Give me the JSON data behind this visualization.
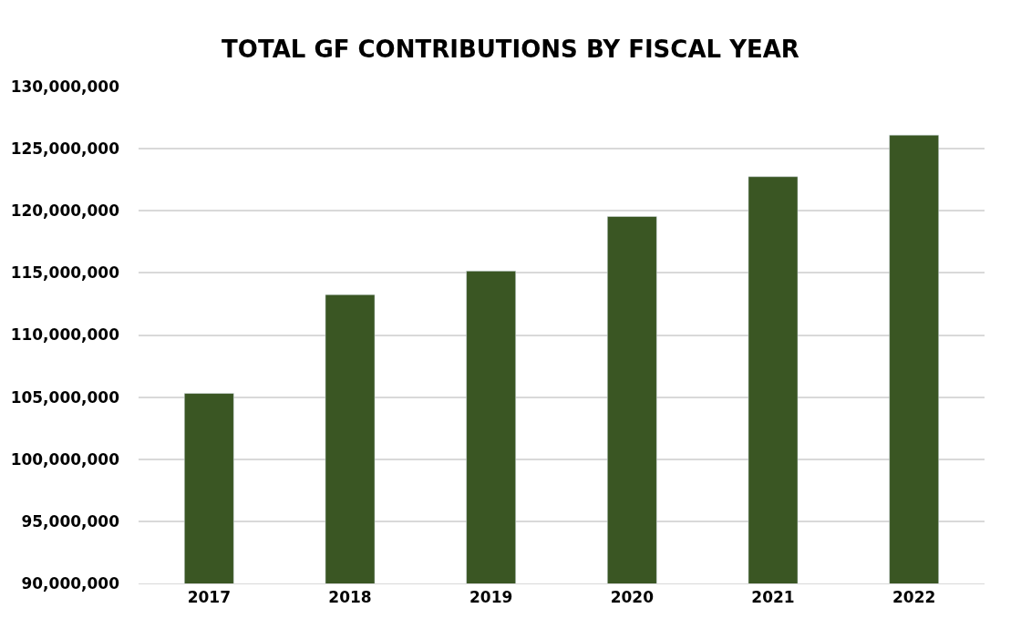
{
  "chart_data": {
    "type": "bar",
    "title": "TOTAL GF CONTRIBUTIONS BY FISCAL YEAR",
    "categories": [
      "2017",
      "2018",
      "2019",
      "2020",
      "2021",
      "2022"
    ],
    "values": [
      105300000,
      113250000,
      115150000,
      119550000,
      122750000,
      126100000
    ],
    "color": "#3a5623",
    "ylim": [
      90000000,
      130000000
    ],
    "yticks": [
      {
        "value": 90000000,
        "label": "90,000,000"
      },
      {
        "value": 95000000,
        "label": "95,000,000"
      },
      {
        "value": 100000000,
        "label": "100,000,000"
      },
      {
        "value": 105000000,
        "label": "105,000,000"
      },
      {
        "value": 110000000,
        "label": "110,000,000"
      },
      {
        "value": 115000000,
        "label": "115,000,000"
      },
      {
        "value": 120000000,
        "label": "120,000,000"
      },
      {
        "value": 125000000,
        "label": "125,000,000"
      },
      {
        "value": 130000000,
        "label": "130,000,000"
      }
    ],
    "grid": "y"
  }
}
